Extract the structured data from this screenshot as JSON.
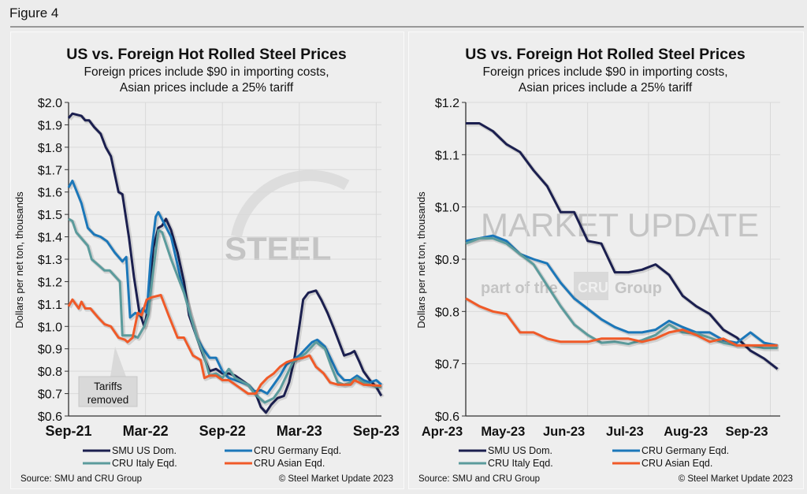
{
  "figure_label": "Figure 4",
  "watermark": {
    "brand": "STEEL MARKET UPDATE",
    "tagline_pre": "part of the",
    "tagline_logo": "CRU",
    "tagline_post": "Group"
  },
  "colors": {
    "SMU US Dom.": "#1b1f4f",
    "CRU Germany Eqd.": "#1b77b9",
    "CRU Italy Eqd.": "#5b9b9c",
    "CRU Asian Eqd.": "#f05a28"
  },
  "chart_data": [
    {
      "type": "line",
      "title": "US vs. Foreign Hot Rolled Steel Prices",
      "subtitle_lines": [
        "Foreign prices include $90 in importing costs,",
        "Asian prices include a 25% tariff"
      ],
      "ylabel": "Dollars per net ton, thousands",
      "xlabel": "",
      "x_unit": "months since Sep-2021",
      "ylim": [
        0.6,
        2.0
      ],
      "yticks": [
        "$0.6",
        "$0.7",
        "$0.8",
        "$0.9",
        "$1.0",
        "$1.1",
        "$1.2",
        "$1.3",
        "$1.4",
        "$1.5",
        "$1.6",
        "$1.7",
        "$1.8",
        "$1.9",
        "$2.0"
      ],
      "xticks": [
        "Sep-21",
        "Mar-22",
        "Sep-22",
        "Mar-23",
        "Sep-23"
      ],
      "grid": true,
      "legend_position": "bottom",
      "annotation": {
        "text_lines": [
          "Tariffs",
          "removed"
        ],
        "x": 4.0
      },
      "source": "Source: SMU and CRU Group",
      "copyright": "© Steel Market Update 2023",
      "series": [
        {
          "name": "SMU US Dom.",
          "x": [
            0,
            0.3,
            1,
            1.3,
            1.6,
            2,
            2.5,
            2.9,
            3.3,
            3.9,
            4.2,
            4.7,
            5.1,
            5.5,
            5.9,
            6.2,
            6.6,
            7.0,
            7.3,
            7.6,
            8.0,
            8.5,
            9,
            9.4,
            10,
            10.5,
            11,
            11.5,
            12,
            12.5,
            13,
            13.5,
            14,
            14.6,
            15.0,
            15.4,
            15.8,
            16.3,
            16.8,
            17.2,
            17.6,
            18,
            18.3,
            18.7,
            19.3,
            19.7,
            20.2,
            20.7,
            21.1,
            21.5,
            22,
            22.3,
            22.7,
            23,
            23.5,
            24,
            24.4
          ],
          "y": [
            1.93,
            1.95,
            1.94,
            1.92,
            1.92,
            1.89,
            1.86,
            1.8,
            1.76,
            1.6,
            1.59,
            1.4,
            1.22,
            1.07,
            1.0,
            1.08,
            1.35,
            1.44,
            1.45,
            1.48,
            1.43,
            1.33,
            1.2,
            1.05,
            0.95,
            0.87,
            0.8,
            0.81,
            0.79,
            0.79,
            0.78,
            0.76,
            0.74,
            0.7,
            0.64,
            0.615,
            0.65,
            0.68,
            0.69,
            0.75,
            0.85,
            1.0,
            1.12,
            1.15,
            1.16,
            1.12,
            1.06,
            0.99,
            0.93,
            0.87,
            0.88,
            0.89,
            0.84,
            0.8,
            0.76,
            0.73,
            0.69
          ]
        },
        {
          "name": "CRU Germany Eqd.",
          "x": [
            0,
            0.3,
            1,
            1.5,
            2,
            2.5,
            3,
            3.6,
            4.2,
            4.5,
            4.8,
            5.2,
            5.5,
            5.8,
            6.1,
            6.4,
            6.8,
            7,
            8,
            8.8,
            9.5,
            10,
            10.5,
            11,
            11.5,
            12,
            12.5,
            13,
            14,
            14.5,
            15,
            15.5,
            16,
            16.5,
            17,
            17.5,
            18,
            18.5,
            19,
            19.4,
            20,
            20.5,
            21,
            21.5,
            22,
            22.5,
            23,
            23.5,
            24,
            24.4
          ],
          "y": [
            1.62,
            1.65,
            1.55,
            1.44,
            1.41,
            1.4,
            1.38,
            1.33,
            1.29,
            1.31,
            1.04,
            1.06,
            1.05,
            1.08,
            1.06,
            1.3,
            1.49,
            1.51,
            1.4,
            1.2,
            1.05,
            0.95,
            0.9,
            0.86,
            0.86,
            0.8,
            0.77,
            0.76,
            0.74,
            0.71,
            0.715,
            0.7,
            0.74,
            0.78,
            0.83,
            0.85,
            0.87,
            0.9,
            0.93,
            0.94,
            0.91,
            0.85,
            0.79,
            0.76,
            0.76,
            0.78,
            0.76,
            0.75,
            0.76,
            0.74
          ]
        },
        {
          "name": "CRU Italy Eqd.",
          "x": [
            0,
            0.3,
            0.6,
            1.5,
            1.8,
            2.8,
            3.2,
            4,
            4.2,
            5,
            5.4,
            5.9,
            6.2,
            6.5,
            7,
            7.3,
            8,
            9,
            10,
            10.5,
            11,
            11.5,
            12,
            12.5,
            13,
            14,
            14.5,
            15.3,
            16,
            16.5,
            17,
            17.5,
            18,
            18.5,
            19.3,
            20,
            20.5,
            21,
            21.5,
            22,
            22.5,
            23,
            23.5,
            24,
            24.4
          ],
          "y": [
            1.48,
            1.47,
            1.42,
            1.36,
            1.3,
            1.25,
            1.25,
            1.2,
            0.96,
            0.96,
            0.95,
            1.0,
            1.05,
            1.2,
            1.43,
            1.42,
            1.3,
            1.15,
            0.95,
            0.88,
            0.78,
            0.79,
            0.77,
            0.81,
            0.77,
            0.74,
            0.7,
            0.66,
            0.68,
            0.72,
            0.78,
            0.84,
            0.86,
            0.88,
            0.93,
            0.9,
            0.82,
            0.75,
            0.74,
            0.75,
            0.77,
            0.75,
            0.74,
            0.73,
            0.73
          ]
        },
        {
          "name": "CRU Asian Eqd.",
          "x": [
            0,
            0.3,
            0.8,
            1,
            1.3,
            1.7,
            2.3,
            2.8,
            3.3,
            3.9,
            4.4,
            4.6,
            5,
            5.4,
            5.7,
            6.1,
            6.5,
            7.2,
            7.8,
            8.5,
            9,
            9.7,
            10.3,
            10.6,
            11,
            11.5,
            12,
            12.5,
            13,
            14,
            14.6,
            15,
            15.5,
            16,
            16.5,
            17,
            17.5,
            18.3,
            18.8,
            19.3,
            19.9,
            20.4,
            21,
            21.5,
            22,
            22.3,
            23,
            24.4
          ],
          "y": [
            1.09,
            1.12,
            1.08,
            1.11,
            1.08,
            1.08,
            1.04,
            1.01,
            1.0,
            0.95,
            0.94,
            0.93,
            0.95,
            1.06,
            1.05,
            1.12,
            1.13,
            1.14,
            1.05,
            0.95,
            0.95,
            0.87,
            0.85,
            0.77,
            0.78,
            0.78,
            0.76,
            0.76,
            0.74,
            0.7,
            0.7,
            0.74,
            0.77,
            0.79,
            0.82,
            0.84,
            0.85,
            0.86,
            0.87,
            0.82,
            0.79,
            0.75,
            0.74,
            0.74,
            0.74,
            0.76,
            0.74,
            0.735
          ]
        }
      ]
    },
    {
      "type": "line",
      "title": "US vs. Foreign Hot Rolled Steel Prices",
      "subtitle_lines": [
        "Foreign prices include $90 in importing costs,",
        "Asian prices include a 25% tariff"
      ],
      "ylabel": "Dollars per net ton, thousands",
      "xlabel": "",
      "x_unit": "weeks since start of Apr-2023",
      "ylim": [
        0.6,
        1.2
      ],
      "yticks": [
        "$0.6",
        "$0.7",
        "$0.8",
        "$0.9",
        "$1.0",
        "$1.1",
        "$1.2"
      ],
      "xticks": [
        "Apr-23",
        "May-23",
        "Jun-23",
        "Jul-23",
        "Aug-23",
        "Sep-23"
      ],
      "grid": true,
      "legend_position": "bottom",
      "source": "Source: SMU and CRU Group",
      "copyright": "© Steel Market Update 2023",
      "series": [
        {
          "name": "SMU US Dom.",
          "y": [
            1.16,
            1.16,
            1.145,
            1.12,
            1.105,
            1.07,
            1.04,
            0.99,
            0.99,
            0.935,
            0.93,
            0.875,
            0.875,
            0.88,
            0.89,
            0.87,
            0.83,
            0.81,
            0.795,
            0.765,
            0.75,
            0.725,
            0.71,
            0.69
          ]
        },
        {
          "name": "CRU Germany Eqd.",
          "y": [
            0.935,
            0.94,
            0.945,
            0.935,
            0.91,
            0.9,
            0.892,
            0.855,
            0.825,
            0.805,
            0.785,
            0.77,
            0.76,
            0.76,
            0.765,
            0.782,
            0.77,
            0.76,
            0.76,
            0.745,
            0.74,
            0.76,
            0.74,
            0.735
          ]
        },
        {
          "name": "CRU Italy Eqd.",
          "y": [
            0.93,
            0.94,
            0.94,
            0.93,
            0.91,
            0.89,
            0.85,
            0.81,
            0.775,
            0.755,
            0.74,
            0.742,
            0.738,
            0.745,
            0.755,
            0.775,
            0.76,
            0.758,
            0.75,
            0.74,
            0.735,
            0.735,
            0.73,
            0.73
          ]
        },
        {
          "name": "CRU Asian Eqd.",
          "y": [
            0.825,
            0.81,
            0.8,
            0.795,
            0.76,
            0.76,
            0.748,
            0.742,
            0.742,
            0.742,
            0.748,
            0.748,
            0.748,
            0.742,
            0.748,
            0.76,
            0.765,
            0.755,
            0.742,
            0.748,
            0.735,
            0.735,
            0.735,
            0.735
          ]
        }
      ]
    }
  ]
}
